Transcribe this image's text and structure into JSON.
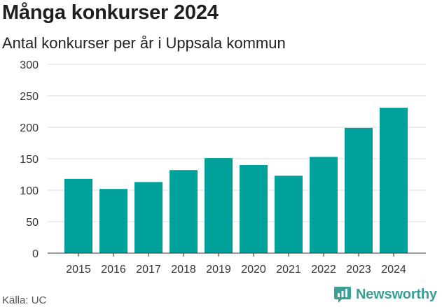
{
  "title": "Många konkurser 2024",
  "subtitle": "Antal konkurser per år i Uppsala kommun",
  "source": "Källa: UC",
  "brand": {
    "name": "Newsworthy",
    "icon": "newsworthy-logo-icon",
    "color": "#3a9f95"
  },
  "colors": {
    "bar": "#00a19a",
    "grid": "#dddddd",
    "axis": "#333333"
  },
  "chart_data": {
    "type": "bar",
    "categories": [
      "2015",
      "2016",
      "2017",
      "2018",
      "2019",
      "2020",
      "2021",
      "2022",
      "2023",
      "2024"
    ],
    "values": [
      118,
      102,
      113,
      132,
      151,
      140,
      123,
      153,
      199,
      231
    ],
    "title": "Många konkurser 2024",
    "subtitle": "Antal konkurser per år i Uppsala kommun",
    "xlabel": "",
    "ylabel": "",
    "ylim": [
      0,
      300
    ],
    "yticks": [
      0,
      50,
      100,
      150,
      200,
      250,
      300
    ],
    "grid": true,
    "legend": "none"
  }
}
